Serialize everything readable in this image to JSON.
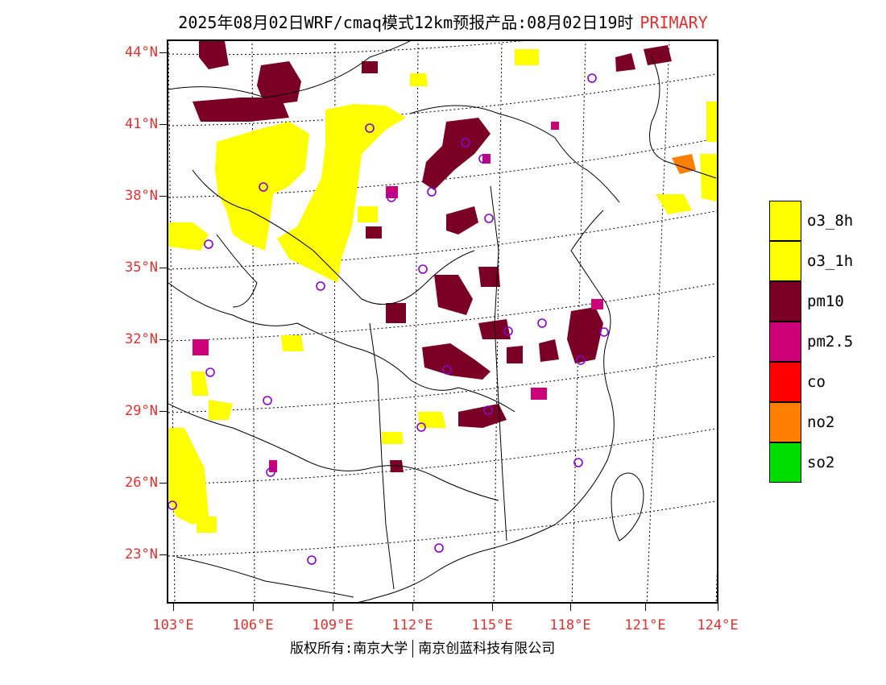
{
  "title": {
    "main": "2025年08月02日WRF/cmaq模式12km预报产品:08月02日19时",
    "tag": "PRIMARY"
  },
  "map": {
    "lat_labels": [
      "44°N",
      "41°N",
      "38°N",
      "35°N",
      "32°N",
      "29°N",
      "26°N",
      "23°N"
    ],
    "lon_labels": [
      "103°E",
      "106°E",
      "109°E",
      "112°E",
      "115°E",
      "118°E",
      "121°E",
      "124°E"
    ],
    "colors": {
      "o3": "#ffff00",
      "pm10": "#7a0026",
      "pm25": "#cc0077",
      "no2": "#ff8000",
      "site_marker": "#8800cc",
      "label": "#e03030"
    }
  },
  "legend": [
    {
      "label": "o3_8h",
      "color": "#ffff00"
    },
    {
      "label": "o3_1h",
      "color": "#ffff00"
    },
    {
      "label": "pm10",
      "color": "#7a0026"
    },
    {
      "label": "pm2.5",
      "color": "#cc0077"
    },
    {
      "label": "co",
      "color": "#ff0000"
    },
    {
      "label": "no2",
      "color": "#ff8000"
    },
    {
      "label": "so2",
      "color": "#00dd00"
    }
  ],
  "footer": {
    "left": "版权所有:南京大学",
    "right": "南京创蓝科技有限公司"
  }
}
